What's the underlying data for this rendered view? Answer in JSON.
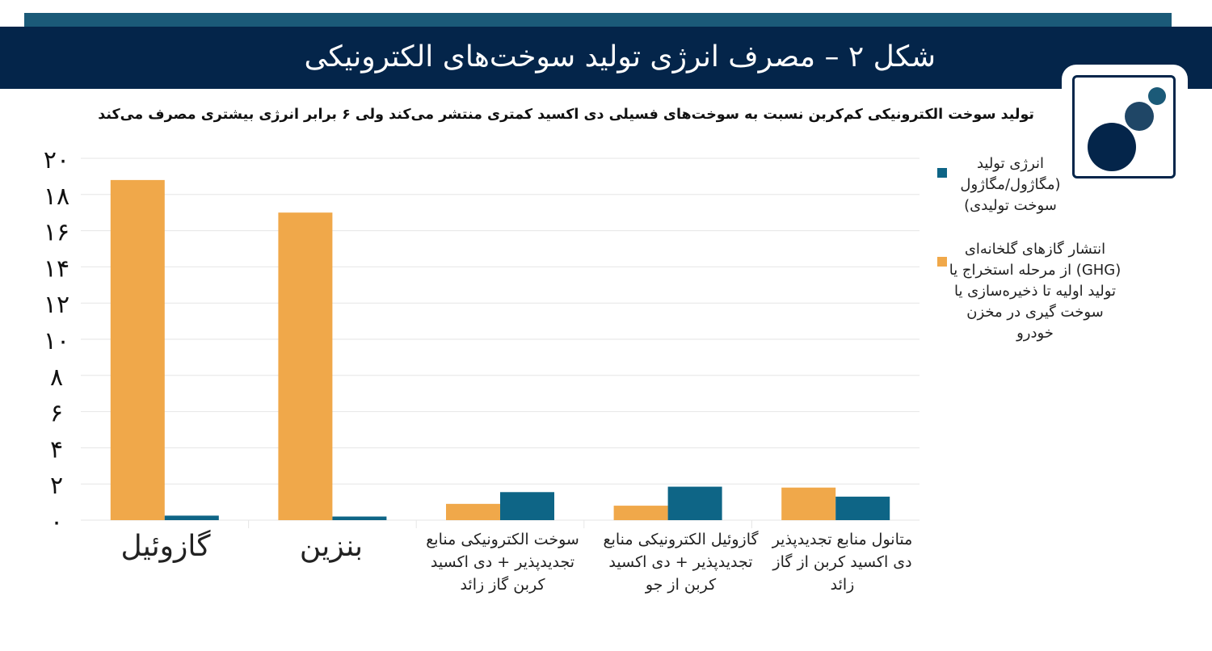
{
  "header": {
    "title": "شکل ۲ – مصرف انرژی تولید سوخت‌های الکترونیکی"
  },
  "subtitle": "تولید سوخت الکترونیکی کم‌کربن نسبت به سوخت‌های فسیلی دی اکسید کمتری منتشر می‌کند ولی ۶ برابر انرژی بیشتری مصرف می‌کند",
  "legend": {
    "energy": "انرژی تولید (مگاژول/مگاژول سوخت تولیدی)",
    "ghg": "انتشار گازهای گلخانه‌ای (GHG) از مرحله استخراج یا تولید اولیه تا ذخیره‌سازی یا سوخت گیری در مخزن خودرو"
  },
  "colors": {
    "ghg": "#f0a84a",
    "energy": "#0e6586",
    "header": "#04254a",
    "strip": "#1b5a78",
    "grid": "#e6e6e6"
  },
  "chart_data": {
    "type": "bar",
    "title": "تولید سوخت الکترونیکی کم‌کربن نسبت به سوخت‌های فسیلی دی اکسید کمتری منتشر می‌کند ولی ۶ برابر انرژی بیشتری مصرف می‌کند",
    "categories": [
      "گازوئیل",
      "بنزین",
      "سوخت الکترونیکی منابع تجدیدپذیر + دی اکسید کربن گاز زائد",
      "گازوئیل الکترونیکی منابع تجدیدپذیر + دی اکسید کربن از جو",
      "متانول منابع تجدیدپذیر دی اکسید کربن از گاز زائد"
    ],
    "series": [
      {
        "name": "انتشار گازهای گلخانه‌ای (GHG) از مرحله استخراج یا تولید اولیه تا ذخیره‌سازی یا سوخت گیری در مخزن خودرو",
        "values": [
          18.8,
          17.0,
          0.9,
          0.8,
          1.8
        ]
      },
      {
        "name": "انرژی تولید (مگاژول/مگاژول سوخت تولیدی)",
        "values": [
          0.25,
          0.2,
          1.55,
          1.85,
          1.3
        ]
      }
    ],
    "ylim": [
      0,
      20
    ],
    "yticks": [
      "۰",
      "۲",
      "۴",
      "۶",
      "۸",
      "۱۰",
      "۱۲",
      "۱۴",
      "۱۶",
      "۱۸",
      "۲۰"
    ],
    "xlabel": "",
    "ylabel": "",
    "grid": true,
    "legend_position": "right"
  }
}
